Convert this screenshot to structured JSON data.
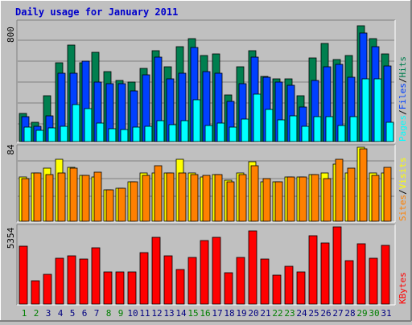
{
  "title": "Daily usage for January 2011",
  "colors": {
    "background": "#c0c0c0",
    "plot_bg": "#c0c0c0",
    "title": "#0000cc",
    "hits": "#007f4f",
    "files": "#0040ff",
    "pages": "#00ffff",
    "visits": "#ffff00",
    "sites": "#ff8000",
    "kbytes": "#ff0000",
    "weekend_label": "#007f00",
    "weekday_label": "#000080"
  },
  "chart_data": [
    {
      "type": "bar",
      "panel": "top",
      "y_max_label": "800",
      "ylim": [
        0,
        800
      ],
      "grid": true,
      "legend_placement": "right",
      "legend": [
        "Pages",
        "Files",
        "Hits"
      ],
      "categories": [
        "1",
        "2",
        "3",
        "4",
        "5",
        "6",
        "7",
        "8",
        "9",
        "10",
        "11",
        "12",
        "13",
        "14",
        "15",
        "16",
        "17",
        "18",
        "19",
        "20",
        "21",
        "22",
        "23",
        "24",
        "25",
        "26",
        "27",
        "28",
        "29",
        "30",
        "31"
      ],
      "series": [
        {
          "name": "Hits",
          "color": "#007f4f",
          "values": [
            190,
            130,
            310,
            530,
            650,
            530,
            600,
            470,
            410,
            400,
            490,
            610,
            500,
            640,
            690,
            580,
            590,
            315,
            500,
            610,
            440,
            420,
            420,
            310,
            560,
            660,
            550,
            580,
            780,
            690,
            590
          ]
        },
        {
          "name": "Files",
          "color": "#0040ff",
          "values": [
            165,
            105,
            175,
            460,
            460,
            540,
            400,
            390,
            390,
            340,
            450,
            570,
            420,
            460,
            630,
            470,
            460,
            270,
            390,
            570,
            430,
            400,
            380,
            230,
            410,
            500,
            520,
            430,
            730,
            640,
            510
          ]
        },
        {
          "name": "Pages",
          "color": "#00ffff",
          "values": [
            95,
            75,
            90,
            105,
            250,
            220,
            125,
            85,
            80,
            95,
            105,
            140,
            115,
            140,
            280,
            110,
            125,
            95,
            150,
            320,
            215,
            145,
            175,
            105,
            170,
            165,
            110,
            165,
            420,
            420,
            130
          ]
        }
      ]
    },
    {
      "type": "bar",
      "panel": "middle",
      "y_max_label": "84",
      "ylim": [
        0,
        84
      ],
      "grid": true,
      "legend_placement": "right",
      "legend": [
        "Sites",
        "Visits"
      ],
      "categories": [
        "1",
        "2",
        "3",
        "4",
        "5",
        "6",
        "7",
        "8",
        "9",
        "10",
        "11",
        "12",
        "13",
        "14",
        "15",
        "16",
        "17",
        "18",
        "19",
        "20",
        "21",
        "22",
        "23",
        "24",
        "25",
        "26",
        "27",
        "28",
        "29",
        "30",
        "31"
      ],
      "series": [
        {
          "name": "Visits",
          "color": "#ffff00",
          "values": [
            50,
            55,
            60,
            70,
            61,
            52,
            50,
            36,
            37,
            45,
            55,
            55,
            55,
            70,
            55,
            50,
            53,
            47,
            55,
            68,
            45,
            45,
            50,
            50,
            53,
            55,
            65,
            55,
            84,
            55,
            55
          ]
        },
        {
          "name": "Sites",
          "color": "#ff8000",
          "values": [
            48,
            55,
            53,
            55,
            60,
            52,
            56,
            36,
            37,
            45,
            52,
            63,
            55,
            55,
            53,
            52,
            53,
            45,
            53,
            63,
            48,
            45,
            50,
            50,
            53,
            48,
            70,
            60,
            82,
            52,
            61
          ]
        }
      ]
    },
    {
      "type": "bar",
      "panel": "bottom",
      "y_max_label": "5354",
      "ylim": [
        0,
        5354
      ],
      "grid": false,
      "legend_placement": "right",
      "legend": [
        "KBytes"
      ],
      "categories": [
        "1",
        "2",
        "3",
        "4",
        "5",
        "6",
        "7",
        "8",
        "9",
        "10",
        "11",
        "12",
        "13",
        "14",
        "15",
        "16",
        "17",
        "18",
        "19",
        "20",
        "21",
        "22",
        "23",
        "24",
        "25",
        "26",
        "27",
        "28",
        "29",
        "30",
        "31"
      ],
      "series": [
        {
          "name": "KBytes",
          "color": "#ff0000",
          "values": [
            4010,
            1640,
            2090,
            3170,
            3360,
            3130,
            3900,
            2240,
            2250,
            2240,
            3560,
            4640,
            3350,
            2380,
            3220,
            4380,
            4640,
            2160,
            3230,
            5050,
            3150,
            1980,
            2620,
            2230,
            4730,
            4240,
            5330,
            3000,
            4200,
            3170,
            4090
          ]
        }
      ]
    }
  ],
  "day_labels": [
    "1",
    "2",
    "3",
    "4",
    "5",
    "6",
    "7",
    "8",
    "9",
    "10",
    "11",
    "12",
    "13",
    "14",
    "15",
    "16",
    "17",
    "18",
    "19",
    "20",
    "21",
    "22",
    "23",
    "24",
    "25",
    "26",
    "27",
    "28",
    "29",
    "30",
    "31"
  ],
  "weekend_days": [
    1,
    2,
    8,
    9,
    15,
    16,
    22,
    23,
    29,
    30
  ],
  "legends": {
    "top": [
      {
        "text": "Pages",
        "color": "#00ffff"
      },
      {
        "text": "/",
        "color": "#000000"
      },
      {
        "text": "Files",
        "color": "#0040ff"
      },
      {
        "text": "/",
        "color": "#000000"
      },
      {
        "text": "Hits",
        "color": "#007f4f"
      }
    ],
    "middle": [
      {
        "text": "Sites",
        "color": "#ff8000"
      },
      {
        "text": "/",
        "color": "#000000"
      },
      {
        "text": "Visits",
        "color": "#ffff00"
      }
    ],
    "bottom": [
      {
        "text": "KBytes",
        "color": "#ff0000"
      }
    ]
  }
}
